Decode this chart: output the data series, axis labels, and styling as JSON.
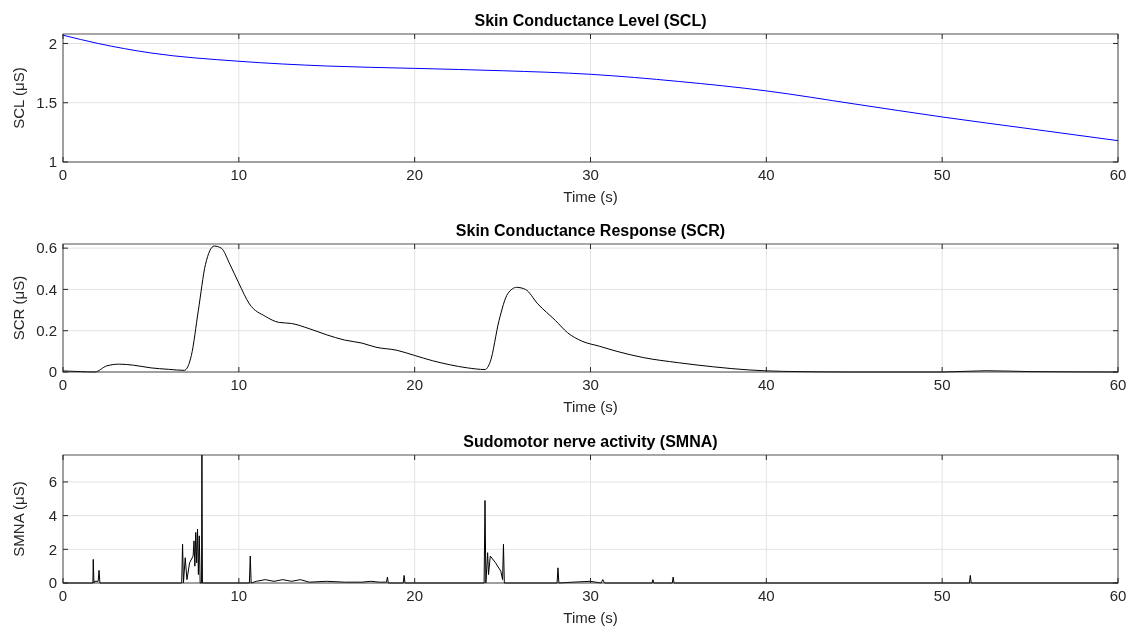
{
  "chart_data": [
    {
      "type": "line",
      "title": "Skin Conductance Level (SCL)",
      "xlabel": "Time (s)",
      "ylabel": "SCL (μS)",
      "xlim": [
        0,
        60
      ],
      "xticks": [
        0,
        10,
        20,
        30,
        40,
        50,
        60
      ],
      "ylim": [
        1,
        2.08
      ],
      "yticks": [
        1,
        1.5,
        2
      ],
      "grid": true,
      "series": [
        {
          "color": "#0000ff",
          "x": [
            0,
            2,
            5,
            10,
            15,
            20,
            25,
            30,
            35,
            40,
            45,
            50,
            55,
            60
          ],
          "values": [
            2.07,
            2.0,
            1.92,
            1.85,
            1.81,
            1.79,
            1.77,
            1.74,
            1.68,
            1.6,
            1.49,
            1.38,
            1.28,
            1.18
          ]
        }
      ]
    },
    {
      "type": "line",
      "title": "Skin Conductance Response (SCR)",
      "xlabel": "Time (s)",
      "ylabel": "SCR (μS)",
      "xlim": [
        0,
        60
      ],
      "xticks": [
        0,
        10,
        20,
        30,
        40,
        50,
        60
      ],
      "ylim": [
        0,
        0.62
      ],
      "yticks": [
        0,
        0.2,
        0.4,
        0.6
      ],
      "grid": true,
      "series": [
        {
          "color": "#000000",
          "x": [
            0,
            1,
            1.8,
            2.5,
            3.2,
            4,
            5,
            6,
            6.9,
            7.3,
            7.7,
            8.1,
            8.6,
            9,
            9.5,
            10,
            10.6,
            11.5,
            12.3,
            13,
            14,
            15,
            16,
            17,
            17.8,
            19,
            20,
            21,
            22,
            23,
            24,
            24.3,
            24.8,
            25.3,
            25.8,
            26.3,
            27,
            28,
            28.7,
            29.5,
            30.5,
            31.5,
            33,
            35,
            37,
            39,
            41,
            45,
            50,
            52.5,
            55,
            60
          ],
          "values": [
            0.005,
            0.002,
            0,
            0.03,
            0.038,
            0.033,
            0.02,
            0.013,
            0.008,
            0.08,
            0.3,
            0.52,
            0.61,
            0.6,
            0.52,
            0.43,
            0.33,
            0.27,
            0.24,
            0.235,
            0.21,
            0.18,
            0.155,
            0.14,
            0.12,
            0.105,
            0.08,
            0.055,
            0.035,
            0.02,
            0.012,
            0.05,
            0.25,
            0.38,
            0.41,
            0.4,
            0.33,
            0.25,
            0.19,
            0.15,
            0.125,
            0.1,
            0.07,
            0.045,
            0.025,
            0.01,
            0.003,
            0,
            0,
            0.006,
            0.002,
            0
          ]
        }
      ]
    },
    {
      "type": "line",
      "title": "Sudomotor nerve activity (SMNA)",
      "xlabel": "Time (s)",
      "ylabel": "SMNA (μS)",
      "xlim": [
        0,
        60
      ],
      "xticks": [
        0,
        10,
        20,
        30,
        40,
        50,
        60
      ],
      "ylim": [
        0,
        7.6
      ],
      "yticks": [
        0,
        2,
        4,
        6
      ],
      "grid": true,
      "series": [
        {
          "color": "#000000",
          "x": [
            0,
            1.7,
            1.72,
            1.76,
            1.8,
            2.0,
            2.05,
            2.1,
            6.75,
            6.8,
            6.85,
            6.95,
            7.05,
            7.2,
            7.4,
            7.45,
            7.5,
            7.55,
            7.6,
            7.65,
            7.7,
            7.75,
            7.8,
            7.88,
            7.9,
            7.93,
            10.6,
            10.65,
            10.7,
            11,
            11.5,
            12,
            12.5,
            13,
            13.5,
            14,
            15,
            16,
            17,
            17.5,
            18,
            18.4,
            18.45,
            18.5,
            19.35,
            19.4,
            19.45,
            23.95,
            24.0,
            24.05,
            24.15,
            24.2,
            24.3,
            24.6,
            24.9,
            25.0,
            25.05,
            25.1,
            28.1,
            28.15,
            28.2,
            29,
            30,
            30.6,
            30.7,
            30.8,
            33.5,
            33.55,
            33.6,
            34.65,
            34.7,
            34.75,
            51.55,
            51.6,
            51.65,
            60
          ],
          "values": [
            0,
            0,
            1.4,
            0,
            0.1,
            0.1,
            0.75,
            0,
            0,
            2.3,
            0,
            1.5,
            0.2,
            1.2,
            1.6,
            2.5,
            1.0,
            3.0,
            1.2,
            3.2,
            0.5,
            2.8,
            0,
            0,
            7.6,
            0,
            0,
            1.6,
            0,
            0.1,
            0.2,
            0.1,
            0.2,
            0.1,
            0.2,
            0.05,
            0.1,
            0.05,
            0.05,
            0.1,
            0.05,
            0.05,
            0.35,
            0,
            0,
            0.45,
            0,
            0,
            4.9,
            0,
            1.8,
            0.5,
            1.6,
            1.2,
            0.7,
            0.2,
            2.3,
            0,
            0,
            0.9,
            0,
            0.05,
            0.1,
            0,
            0.2,
            0,
            0,
            0.2,
            0,
            0,
            0.35,
            0,
            0,
            0.45,
            0,
            0
          ]
        }
      ]
    }
  ]
}
